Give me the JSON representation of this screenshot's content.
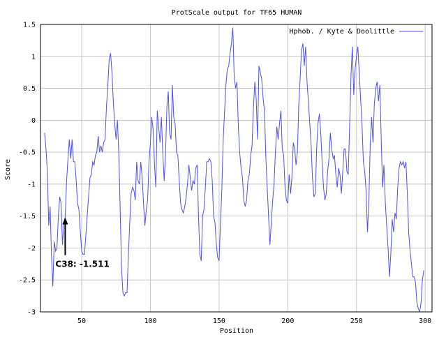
{
  "chart_data": {
    "type": "line",
    "title": "ProtScale output for TF65 HUMAN",
    "xlabel": "Position",
    "ylabel": "Score",
    "xlim": [
      20,
      305
    ],
    "ylim": [
      -3,
      1.5
    ],
    "xticks": [
      50,
      100,
      150,
      200,
      250,
      300
    ],
    "yticks": [
      -3,
      -2.5,
      -2,
      -1.5,
      -1,
      -0.5,
      0,
      0.5,
      1,
      1.5
    ],
    "grid": true,
    "legend": "top-right",
    "series": [
      {
        "name": "Hphob. / Kyte & Doolittle",
        "color": "#4d4dff",
        "points": [
          [
            23,
            -0.2
          ],
          [
            24,
            -0.45
          ],
          [
            25,
            -0.8
          ],
          [
            26,
            -1.65
          ],
          [
            27,
            -1.35
          ],
          [
            28,
            -2.1
          ],
          [
            29,
            -2.6
          ],
          [
            30,
            -1.9
          ],
          [
            31,
            -2.05
          ],
          [
            32,
            -2.0
          ],
          [
            33,
            -1.5
          ],
          [
            34,
            -1.2
          ],
          [
            35,
            -1.3
          ],
          [
            36,
            -1.95
          ],
          [
            37,
            -1.6
          ],
          [
            38,
            -1.51
          ],
          [
            39,
            -0.95
          ],
          [
            40,
            -0.6
          ],
          [
            41,
            -0.3
          ],
          [
            42,
            -0.6
          ],
          [
            43,
            -0.3
          ],
          [
            44,
            -0.65
          ],
          [
            45,
            -0.65
          ],
          [
            46,
            -0.95
          ],
          [
            47,
            -1.3
          ],
          [
            48,
            -1.4
          ],
          [
            49,
            -1.75
          ],
          [
            50,
            -2.05
          ],
          [
            51,
            -2.1
          ],
          [
            52,
            -2.1
          ],
          [
            53,
            -1.8
          ],
          [
            54,
            -1.5
          ],
          [
            55,
            -1.2
          ],
          [
            56,
            -0.9
          ],
          [
            57,
            -0.85
          ],
          [
            58,
            -0.65
          ],
          [
            59,
            -0.7
          ],
          [
            60,
            -0.55
          ],
          [
            61,
            -0.5
          ],
          [
            62,
            -0.25
          ],
          [
            63,
            -0.5
          ],
          [
            64,
            -0.4
          ],
          [
            65,
            -0.5
          ],
          [
            66,
            -0.35
          ],
          [
            67,
            -0.3
          ],
          [
            68,
            0.2
          ],
          [
            69,
            0.55
          ],
          [
            70,
            0.95
          ],
          [
            71,
            1.05
          ],
          [
            72,
            0.75
          ],
          [
            73,
            0.3
          ],
          [
            74,
            -0.05
          ],
          [
            75,
            -0.3
          ],
          [
            76,
            0.0
          ],
          [
            77,
            -0.5
          ],
          [
            78,
            -1.4
          ],
          [
            79,
            -2.3
          ],
          [
            80,
            -2.7
          ],
          [
            81,
            -2.75
          ],
          [
            82,
            -2.7
          ],
          [
            83,
            -2.7
          ],
          [
            84,
            -2.1
          ],
          [
            85,
            -1.6
          ],
          [
            86,
            -1.15
          ],
          [
            87,
            -1.05
          ],
          [
            88,
            -1.1
          ],
          [
            89,
            -1.25
          ],
          [
            90,
            -0.65
          ],
          [
            91,
            -0.95
          ],
          [
            92,
            -1.0
          ],
          [
            93,
            -0.65
          ],
          [
            94,
            -0.9
          ],
          [
            95,
            -1.3
          ],
          [
            96,
            -1.65
          ],
          [
            97,
            -1.4
          ],
          [
            98,
            -1.25
          ],
          [
            99,
            -0.65
          ],
          [
            100,
            -0.35
          ],
          [
            101,
            0.05
          ],
          [
            102,
            -0.15
          ],
          [
            103,
            -0.7
          ],
          [
            104,
            -1.05
          ],
          [
            105,
            0.15
          ],
          [
            106,
            -0.1
          ],
          [
            107,
            -0.35
          ],
          [
            108,
            0.05
          ],
          [
            109,
            -0.5
          ],
          [
            110,
            -0.95
          ],
          [
            111,
            -0.55
          ],
          [
            112,
            0.2
          ],
          [
            113,
            0.45
          ],
          [
            114,
            -0.2
          ],
          [
            115,
            -0.3
          ],
          [
            116,
            0.55
          ],
          [
            117,
            0.05
          ],
          [
            118,
            -0.05
          ],
          [
            119,
            -0.5
          ],
          [
            120,
            -0.55
          ],
          [
            121,
            -0.95
          ],
          [
            122,
            -1.3
          ],
          [
            123,
            -1.4
          ],
          [
            124,
            -1.45
          ],
          [
            125,
            -1.35
          ],
          [
            126,
            -1.2
          ],
          [
            127,
            -1.0
          ],
          [
            128,
            -0.7
          ],
          [
            129,
            -0.9
          ],
          [
            130,
            -1.1
          ],
          [
            131,
            -0.95
          ],
          [
            132,
            -1.0
          ],
          [
            133,
            -0.75
          ],
          [
            134,
            -0.7
          ],
          [
            135,
            -1.5
          ],
          [
            136,
            -2.1
          ],
          [
            137,
            -2.2
          ],
          [
            138,
            -1.5
          ],
          [
            139,
            -1.4
          ],
          [
            140,
            -1.05
          ],
          [
            141,
            -0.65
          ],
          [
            142,
            -0.65
          ],
          [
            143,
            -0.6
          ],
          [
            144,
            -0.65
          ],
          [
            145,
            -0.95
          ],
          [
            146,
            -1.5
          ],
          [
            147,
            -1.6
          ],
          [
            148,
            -1.95
          ],
          [
            149,
            -2.15
          ],
          [
            150,
            -2.2
          ],
          [
            151,
            -1.6
          ],
          [
            152,
            -1.1
          ],
          [
            153,
            -0.3
          ],
          [
            154,
            0.15
          ],
          [
            155,
            0.55
          ],
          [
            156,
            0.8
          ],
          [
            157,
            0.85
          ],
          [
            158,
            1.05
          ],
          [
            159,
            1.2
          ],
          [
            160,
            1.45
          ],
          [
            161,
            0.7
          ],
          [
            162,
            0.5
          ],
          [
            163,
            0.6
          ],
          [
            164,
            -0.1
          ],
          [
            165,
            -0.5
          ],
          [
            166,
            -0.75
          ],
          [
            167,
            -0.9
          ],
          [
            168,
            -1.25
          ],
          [
            169,
            -1.35
          ],
          [
            170,
            -1.25
          ],
          [
            171,
            -0.95
          ],
          [
            172,
            -0.85
          ],
          [
            173,
            -0.55
          ],
          [
            174,
            -0.4
          ],
          [
            175,
            0.2
          ],
          [
            176,
            0.6
          ],
          [
            177,
            0.35
          ],
          [
            178,
            -0.3
          ],
          [
            179,
            0.85
          ],
          [
            180,
            0.75
          ],
          [
            181,
            0.65
          ],
          [
            182,
            0.35
          ],
          [
            183,
            0.15
          ],
          [
            184,
            -0.55
          ],
          [
            185,
            -1.05
          ],
          [
            186,
            -1.5
          ],
          [
            187,
            -1.95
          ],
          [
            188,
            -1.6
          ],
          [
            189,
            -1.25
          ],
          [
            190,
            -1.0
          ],
          [
            191,
            -0.5
          ],
          [
            192,
            -0.1
          ],
          [
            193,
            -0.3
          ],
          [
            194,
            -0.05
          ],
          [
            195,
            0.15
          ],
          [
            196,
            -0.45
          ],
          [
            197,
            -0.55
          ],
          [
            198,
            -1.05
          ],
          [
            199,
            -1.25
          ],
          [
            200,
            -1.3
          ],
          [
            201,
            -0.85
          ],
          [
            202,
            -1.15
          ],
          [
            203,
            -0.9
          ],
          [
            204,
            -0.35
          ],
          [
            205,
            -0.45
          ],
          [
            206,
            -0.7
          ],
          [
            207,
            -0.5
          ],
          [
            208,
            0.25
          ],
          [
            209,
            0.65
          ],
          [
            210,
            1.1
          ],
          [
            211,
            1.2
          ],
          [
            212,
            0.85
          ],
          [
            213,
            1.15
          ],
          [
            214,
            0.6
          ],
          [
            215,
            0.3
          ],
          [
            216,
            -0.05
          ],
          [
            217,
            -0.4
          ],
          [
            218,
            -0.9
          ],
          [
            219,
            -1.2
          ],
          [
            220,
            -1.15
          ],
          [
            221,
            -0.45
          ],
          [
            222,
            -0.05
          ],
          [
            223,
            0.1
          ],
          [
            224,
            -0.2
          ],
          [
            225,
            -0.65
          ],
          [
            226,
            -1.05
          ],
          [
            227,
            -1.25
          ],
          [
            228,
            -1.15
          ],
          [
            229,
            -0.8
          ],
          [
            230,
            -0.6
          ],
          [
            231,
            -0.2
          ],
          [
            232,
            -0.45
          ],
          [
            233,
            -0.6
          ],
          [
            234,
            -0.55
          ],
          [
            235,
            -0.85
          ],
          [
            236,
            -1.05
          ],
          [
            237,
            -0.75
          ],
          [
            238,
            -0.85
          ],
          [
            239,
            -1.15
          ],
          [
            240,
            -0.8
          ],
          [
            241,
            -0.45
          ],
          [
            242,
            -0.45
          ],
          [
            243,
            -0.8
          ],
          [
            244,
            -0.85
          ],
          [
            245,
            -0.1
          ],
          [
            246,
            0.7
          ],
          [
            247,
            1.15
          ],
          [
            248,
            0.4
          ],
          [
            249,
            0.8
          ],
          [
            250,
            1.0
          ],
          [
            251,
            1.15
          ],
          [
            252,
            0.75
          ],
          [
            253,
            0.35
          ],
          [
            254,
            -0.05
          ],
          [
            255,
            -0.65
          ],
          [
            256,
            -0.8
          ],
          [
            257,
            -1.1
          ],
          [
            258,
            -1.75
          ],
          [
            259,
            -1.25
          ],
          [
            260,
            -0.4
          ],
          [
            261,
            0.05
          ],
          [
            262,
            -0.35
          ],
          [
            263,
            0.25
          ],
          [
            264,
            0.5
          ],
          [
            265,
            0.6
          ],
          [
            266,
            0.3
          ],
          [
            267,
            0.55
          ],
          [
            268,
            -0.3
          ],
          [
            269,
            -1.05
          ],
          [
            270,
            -0.7
          ],
          [
            271,
            -1.3
          ],
          [
            272,
            -1.65
          ],
          [
            273,
            -2.0
          ],
          [
            274,
            -2.45
          ],
          [
            275,
            -2.1
          ],
          [
            276,
            -1.55
          ],
          [
            277,
            -1.75
          ],
          [
            278,
            -1.45
          ],
          [
            279,
            -1.55
          ],
          [
            280,
            -1.05
          ],
          [
            281,
            -0.75
          ],
          [
            282,
            -0.65
          ],
          [
            283,
            -0.7
          ],
          [
            284,
            -0.65
          ],
          [
            285,
            -0.75
          ],
          [
            286,
            -0.65
          ],
          [
            287,
            -1.15
          ],
          [
            288,
            -1.75
          ],
          [
            289,
            -2.05
          ],
          [
            290,
            -2.25
          ],
          [
            291,
            -2.45
          ],
          [
            292,
            -2.45
          ],
          [
            293,
            -2.55
          ],
          [
            294,
            -2.85
          ],
          [
            295,
            -2.95
          ],
          [
            296,
            -3.0
          ],
          [
            297,
            -2.85
          ],
          [
            298,
            -2.5
          ],
          [
            299,
            -2.35
          ]
        ]
      }
    ],
    "annotations": [
      {
        "text": "C38: -1.511",
        "x": 38,
        "y": -1.511
      }
    ]
  }
}
